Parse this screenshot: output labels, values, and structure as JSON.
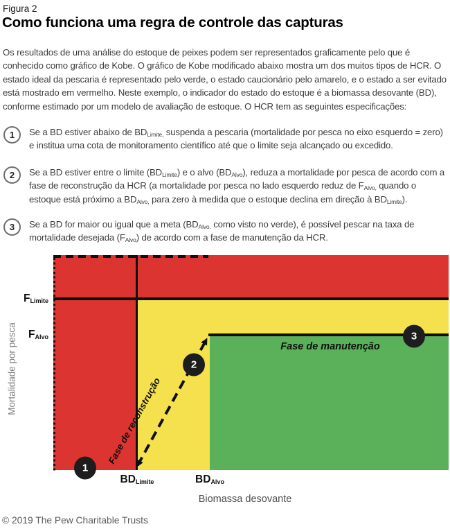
{
  "header": {
    "kicker": "Figura 2",
    "title": "Como funciona uma regra de controle das capturas"
  },
  "intro": "Os resultados de uma análise do estoque de peixes podem ser representados graficamente pelo que é conhecido como gráfico de Kobe. O gráfico de Kobe modificado abaixo mostra um dos muitos tipos de HCR. O estado ideal da pescaria é representado pelo verde, o estado caucionário pelo amarelo, e o estado a ser evitado está mostrado em vermelho. Neste exemplo, o indicador do estado do estoque é a biomassa desovante (BD), conforme estimado por um modelo de avaliação de estoque. O HCR tem as seguintes especificações:",
  "list": [
    {
      "number": "1",
      "segments": [
        {
          "text": "Se a BD estiver abaixo de BD"
        },
        {
          "sub": "Limite,"
        },
        {
          "text": " suspenda a pescaria (mortalidade por pesca no eixo esquerdo = zero) e institua uma cota de monitoramento científico até que o limite seja alcançado ou excedido."
        }
      ]
    },
    {
      "number": "2",
      "segments": [
        {
          "text": "Se a BD estiver entre o limite (BD"
        },
        {
          "sub": "Limite"
        },
        {
          "text": ") e o alvo (BD"
        },
        {
          "sub": "Alvo"
        },
        {
          "text": "), reduza a mortalidade por pesca de acordo com a fase de reconstrução da HCR (a mortalidade por pesca no lado esquerdo reduz de F"
        },
        {
          "sub": "Alvo,"
        },
        {
          "text": " quando o estoque está próximo a BD"
        },
        {
          "sub": "Alvo,"
        },
        {
          "text": " para zero à medida que o estoque declina em direção à BD"
        },
        {
          "sub": "Limite"
        },
        {
          "text": ")."
        }
      ]
    },
    {
      "number": "3",
      "segments": [
        {
          "text": "Se a BD for maior ou igual que a meta (BD"
        },
        {
          "sub": "Alvo,"
        },
        {
          "text": " como visto no verde), é possível pescar na taxa de mortalidade desejada (F"
        },
        {
          "sub": "Alvo"
        },
        {
          "text": ") de acordo com a fase de manutenção da HCR."
        }
      ]
    }
  ],
  "chart": {
    "type": "kobe-hcr-diagram",
    "x_axis_label": "Biomassa desovante",
    "y_axis_label": "Mortalidade por pesca",
    "y_ticks": [
      {
        "main": "F",
        "sub": "Limite"
      },
      {
        "main": "F",
        "sub": "Alvo"
      }
    ],
    "x_ticks": [
      {
        "main": "BD",
        "sub": "Limite"
      },
      {
        "main": "BD",
        "sub": "Alvo"
      }
    ],
    "annotations": {
      "maintenance": "Fase de manutenção",
      "rebuilding": "Fase de reconstrução"
    },
    "markers": [
      "1",
      "2",
      "3"
    ],
    "zones": [
      {
        "id": "evitado",
        "color": "#DC3430"
      },
      {
        "id": "caucionario",
        "color": "#F5E04E"
      },
      {
        "id": "ideal",
        "color": "#5AB15A"
      }
    ],
    "colors": {
      "line": "#0f0f0f",
      "marker_background": "#1d1d1d",
      "marker_text": "#ffffff"
    }
  },
  "footer": "© 2019 The Pew Charitable Trusts"
}
